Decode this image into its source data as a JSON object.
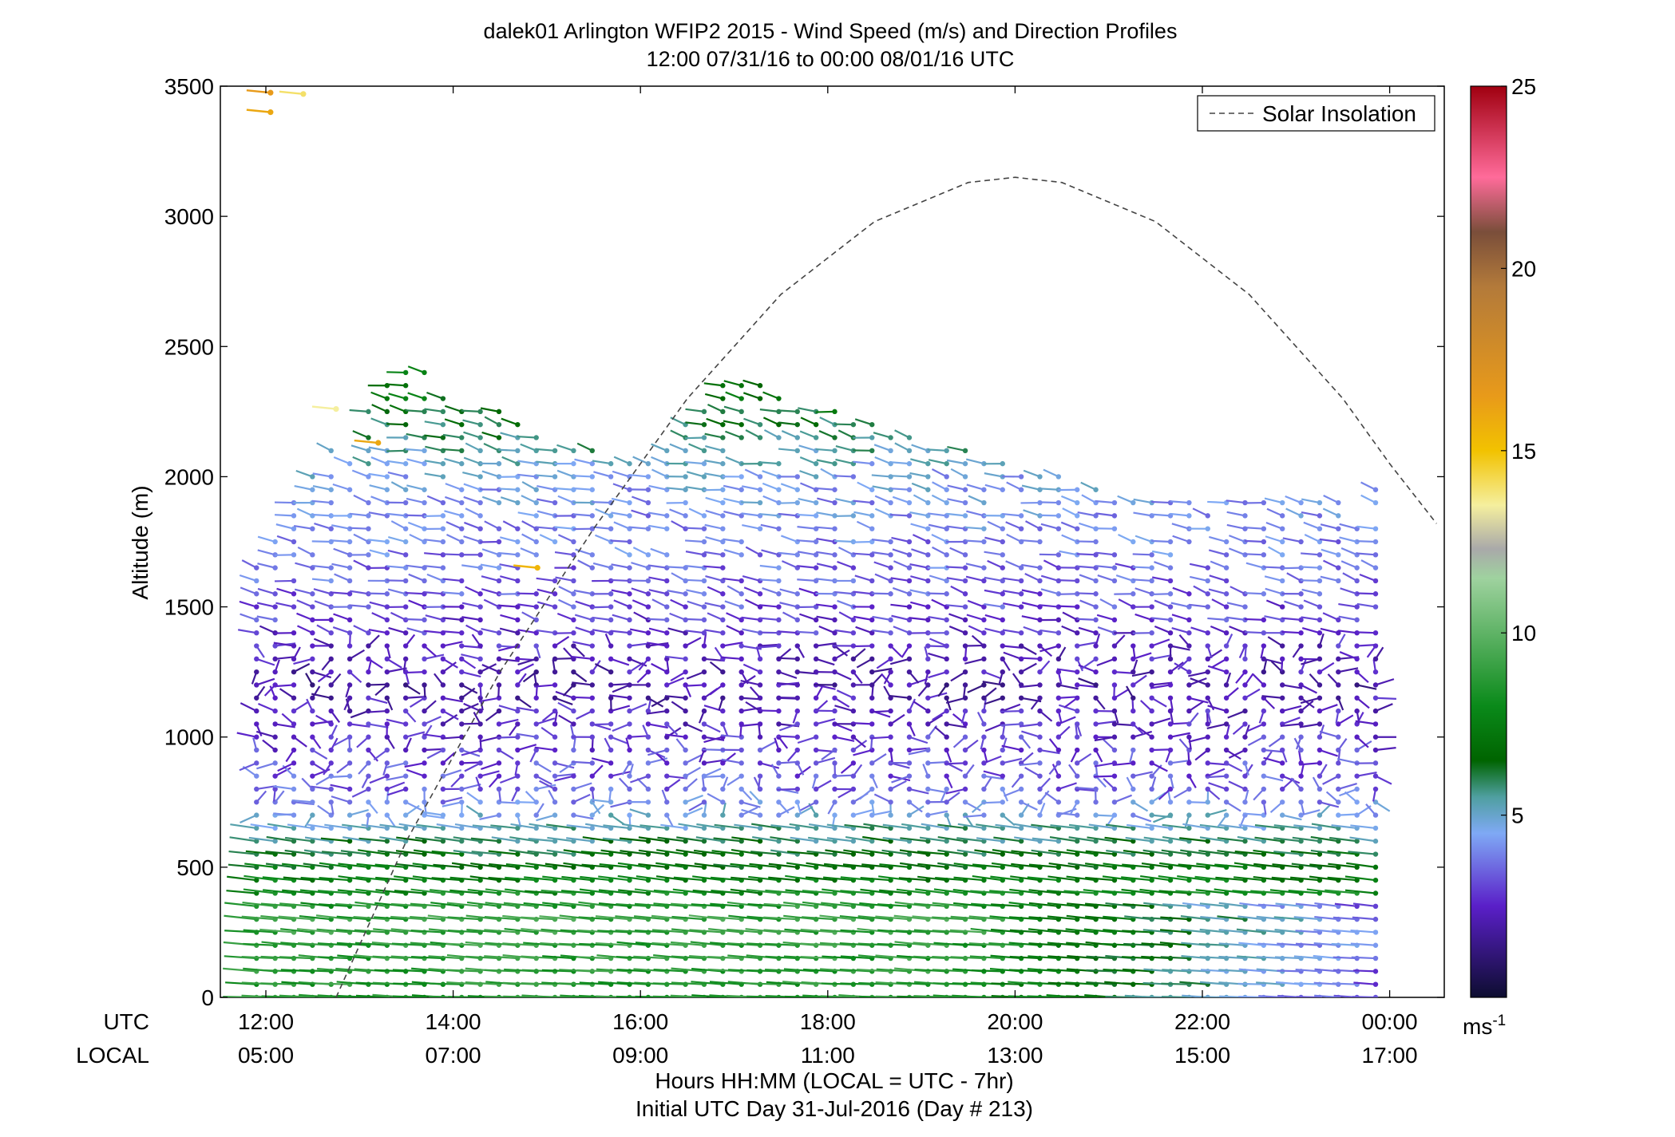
{
  "chart_data": {
    "type": "scatter",
    "title": "dalek01 Arlington WFIP2 2015 - Wind Speed (m/s) and Direction Profiles",
    "subtitle": "12:00 07/31/16 to 00:00 08/01/16  UTC",
    "ylabel": "Altitude (m)",
    "xlabel": "Hours HH:MM  (LOCAL = UTC - 7hr)",
    "xlabel2": "Initial UTC Day 31-Jul-2016 (Day # 213)",
    "row_label_utc": "UTC",
    "row_label_local": "LOCAL",
    "x_ticks_utc": [
      "12:00",
      "14:00",
      "16:00",
      "18:00",
      "20:00",
      "22:00",
      "00:00"
    ],
    "x_ticks_local": [
      "05:00",
      "07:00",
      "09:00",
      "11:00",
      "13:00",
      "15:00",
      "17:00"
    ],
    "xlim_hours": [
      11.75,
      24.5
    ],
    "y_ticks": [
      0,
      500,
      1000,
      1500,
      2000,
      2500,
      3000,
      3500
    ],
    "ylim": [
      0,
      3500
    ],
    "grid": false,
    "legend": {
      "label": "Solar Insolation",
      "position": "top-right"
    },
    "colorbar": {
      "ticks": [
        5,
        10,
        15,
        20,
        25
      ],
      "unit": "ms",
      "unit_exp": "-1",
      "range": [
        0,
        25
      ],
      "stops": [
        {
          "v": 0,
          "c": "#0d0d30"
        },
        {
          "v": 2.5,
          "c": "#5a1fc8"
        },
        {
          "v": 4.5,
          "c": "#7fa9f5"
        },
        {
          "v": 5.5,
          "c": "#4f9fa0"
        },
        {
          "v": 6.5,
          "c": "#006400"
        },
        {
          "v": 8.0,
          "c": "#0a8a1a"
        },
        {
          "v": 11.5,
          "c": "#9fd29f"
        },
        {
          "v": 12.3,
          "c": "#a9a9a9"
        },
        {
          "v": 13.5,
          "c": "#f5ef9e"
        },
        {
          "v": 15.0,
          "c": "#f2c200"
        },
        {
          "v": 16.5,
          "c": "#e89a1a"
        },
        {
          "v": 19.5,
          "c": "#b37a3a"
        },
        {
          "v": 21.0,
          "c": "#7a4e3a"
        },
        {
          "v": 22.5,
          "c": "#ff6b9a"
        },
        {
          "v": 25.0,
          "c": "#a00010"
        }
      ]
    },
    "solar_insolation": {
      "x_hours": [
        12.75,
        13.5,
        14.5,
        15.5,
        16.5,
        17.5,
        18.5,
        19.5,
        20.0,
        20.5,
        21.5,
        22.5,
        23.5,
        24.0,
        24.5
      ],
      "y": [
        0,
        600,
        1250,
        1800,
        2300,
        2700,
        2980,
        3130,
        3150,
        3130,
        2980,
        2700,
        2300,
        2050,
        1820
      ]
    },
    "wind_profiles": {
      "times_start_hour": 11.9,
      "times_end_hour": 23.85,
      "num_times": 61,
      "height_step_m": 50,
      "speed_by_height_m": [
        {
          "z": 0,
          "speed_mps": 8.5
        },
        {
          "z": 300,
          "speed_mps": 9.0
        },
        {
          "z": 550,
          "speed_mps": 6.5
        },
        {
          "z": 800,
          "speed_mps": 3.5
        },
        {
          "z": 1200,
          "speed_mps": 2.0
        },
        {
          "z": 1600,
          "speed_mps": 3.5
        },
        {
          "z": 2000,
          "speed_mps": 4.5
        },
        {
          "z": 2300,
          "speed_mps": 7.0
        }
      ],
      "top_height_by_hour": [
        {
          "h": 11.9,
          "z": 1650
        },
        {
          "h": 12.5,
          "z": 2050
        },
        {
          "h": 13.5,
          "z": 2450
        },
        {
          "h": 15.0,
          "z": 2150
        },
        {
          "h": 16.0,
          "z": 2050
        },
        {
          "h": 17.0,
          "z": 2400
        },
        {
          "h": 18.5,
          "z": 2200
        },
        {
          "h": 20.0,
          "z": 2050
        },
        {
          "h": 21.5,
          "z": 1900
        },
        {
          "h": 23.85,
          "z": 1950
        }
      ],
      "high_gusts": [
        {
          "hour": 12.05,
          "z": 3475,
          "speed_mps": 16.5
        },
        {
          "hour": 12.4,
          "z": 3470,
          "speed_mps": 14.0
        },
        {
          "hour": 12.05,
          "z": 3400,
          "speed_mps": 16.0
        },
        {
          "hour": 12.75,
          "z": 2260,
          "speed_mps": 13.5
        },
        {
          "hour": 14.9,
          "z": 1650,
          "speed_mps": 15.5
        },
        {
          "hour": 13.2,
          "z": 2130,
          "speed_mps": 16.0
        }
      ]
    }
  }
}
